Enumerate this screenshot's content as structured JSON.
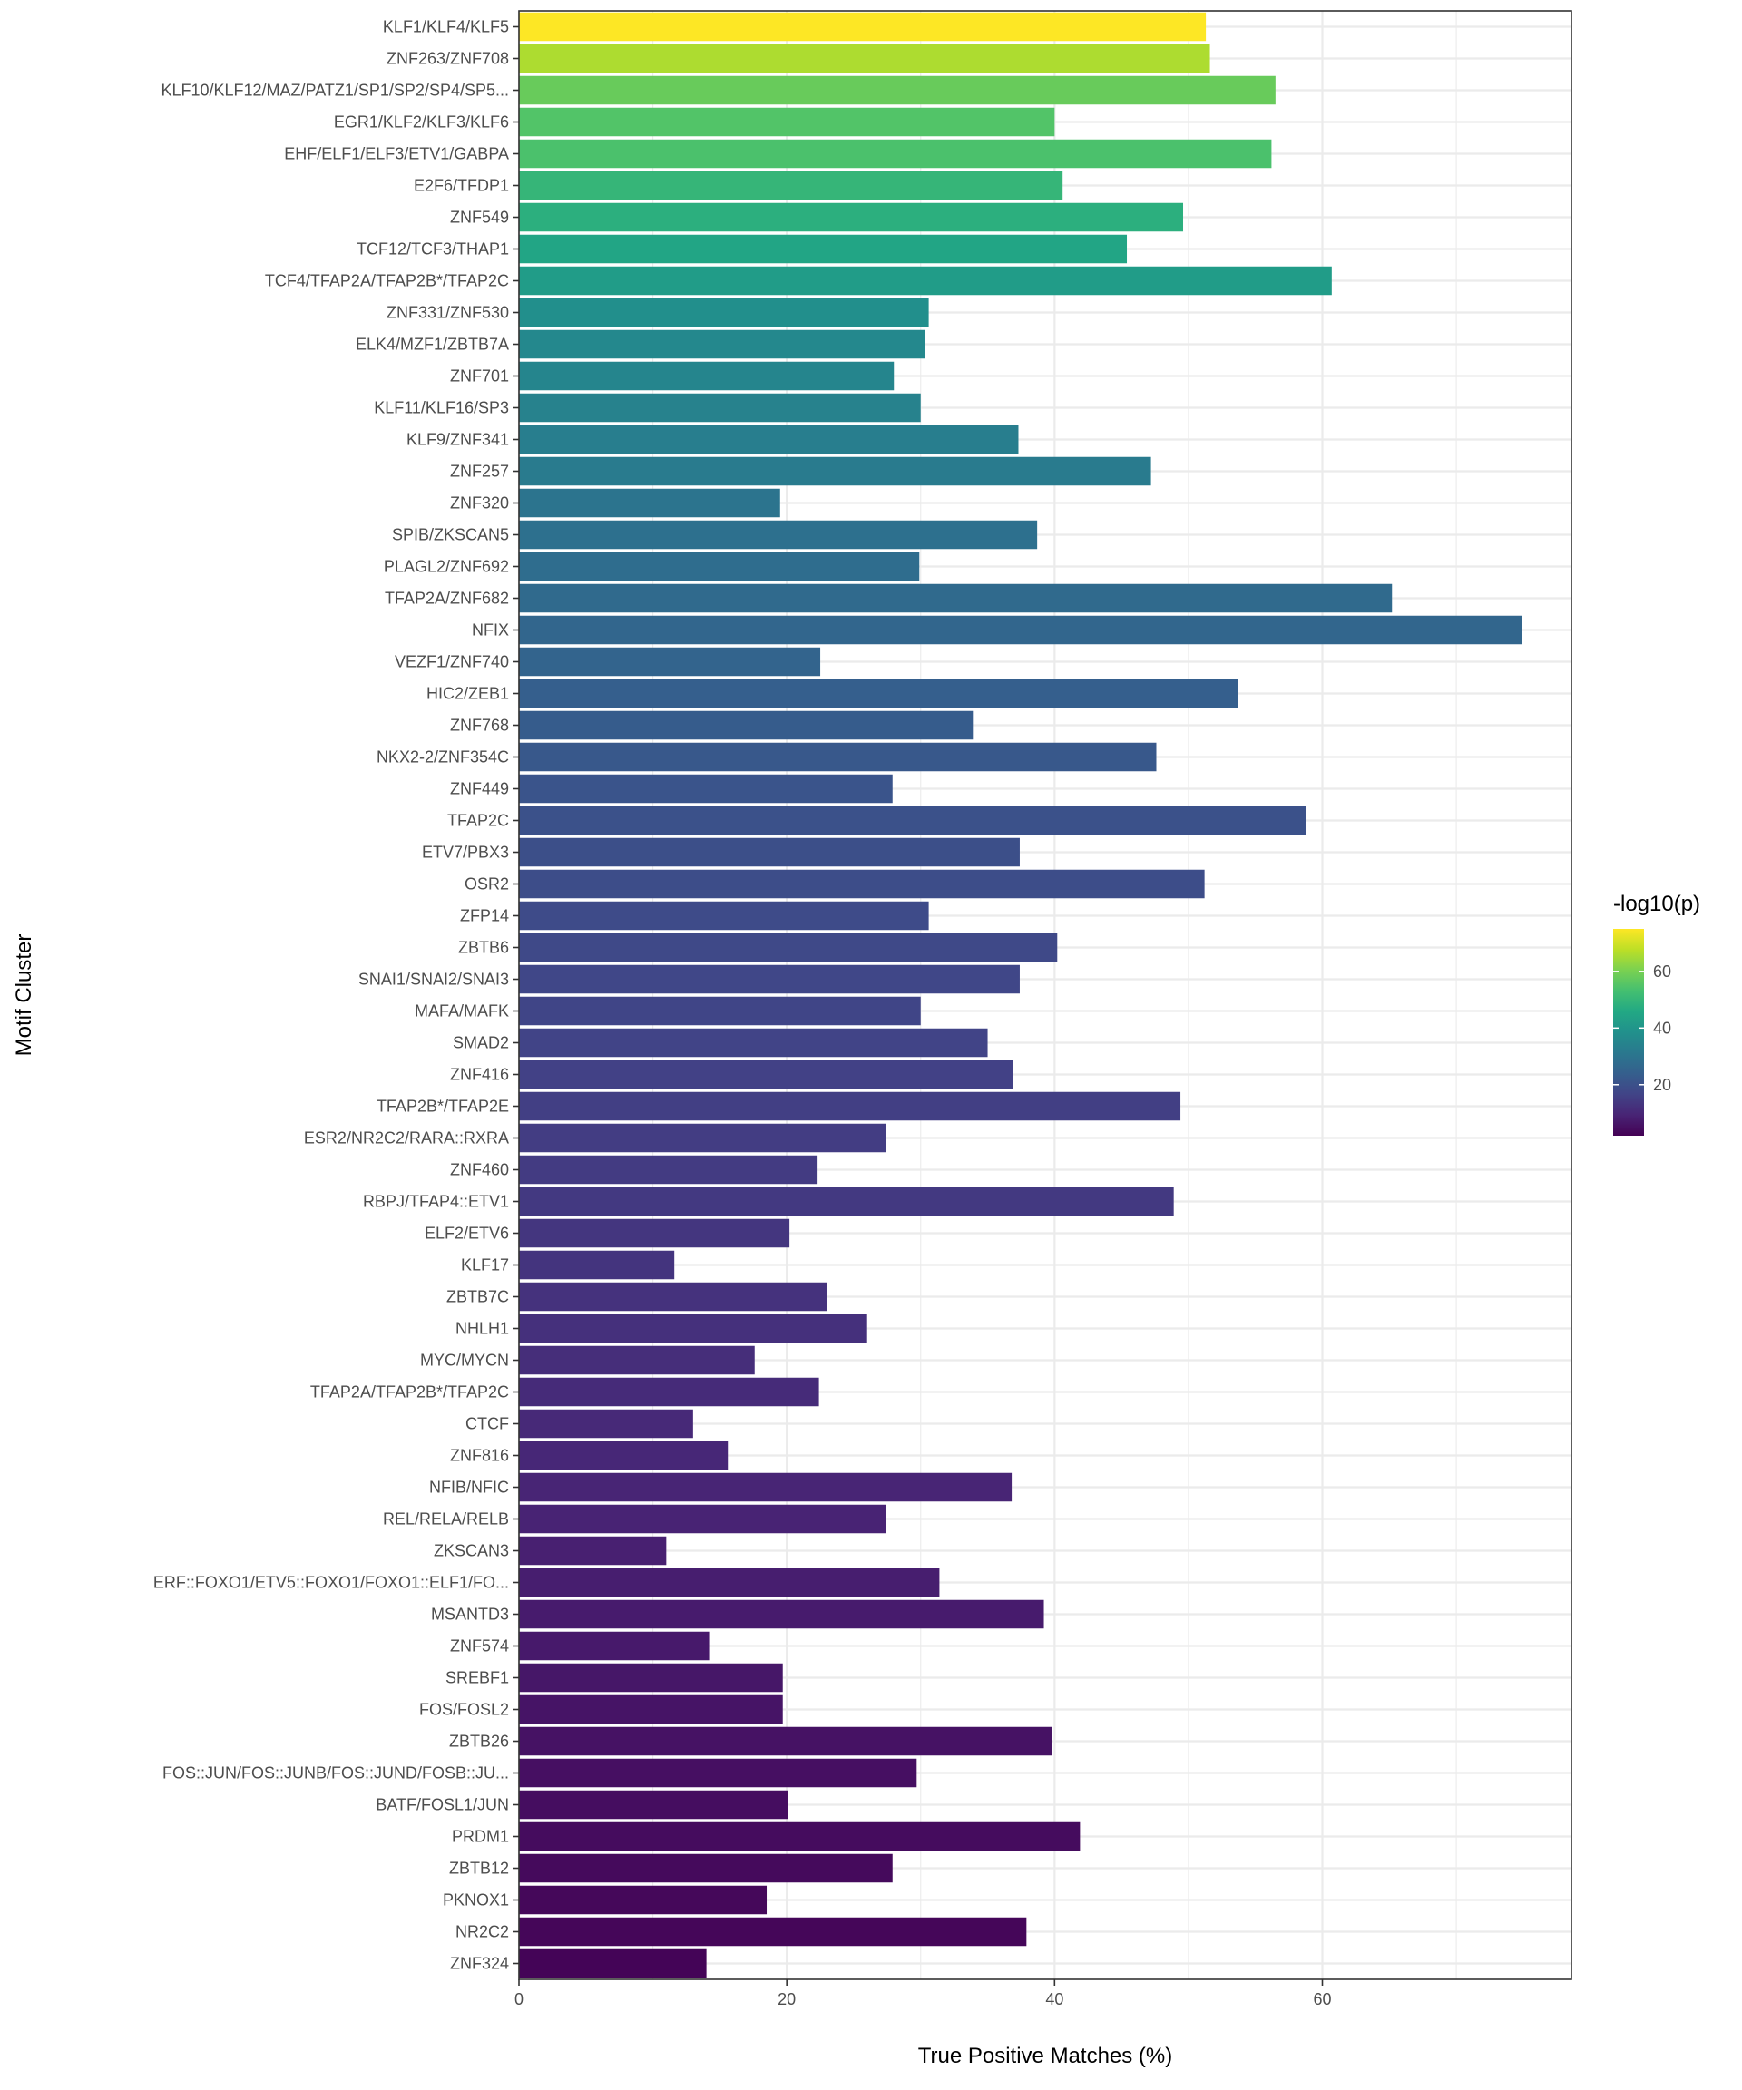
{
  "chart_data": {
    "type": "bar",
    "orientation": "horizontal",
    "xlabel": "True Positive Matches (%)",
    "ylabel": "Motif Cluster",
    "xlim": [
      0,
      78.6
    ],
    "xticks": [
      0,
      20,
      40,
      60
    ],
    "grid": true,
    "legend": {
      "title": "-log10(p)",
      "placement": "right",
      "ticks": [
        20,
        40,
        60
      ],
      "range": [
        2,
        75
      ],
      "colormap": "viridis"
    },
    "categories": [
      "KLF1/KLF4/KLF5",
      "ZNF263/ZNF708",
      "KLF10/KLF12/MAZ/PATZ1/SP1/SP2/SP4/SP5...",
      "EGR1/KLF2/KLF3/KLF6",
      "EHF/ELF1/ELF3/ETV1/GABPA",
      "E2F6/TFDP1",
      "ZNF549",
      "TCF12/TCF3/THAP1",
      "TCF4/TFAP2A/TFAP2B*/TFAP2C",
      "ZNF331/ZNF530",
      "ELK4/MZF1/ZBTB7A",
      "ZNF701",
      "KLF11/KLF16/SP3",
      "KLF9/ZNF341",
      "ZNF257",
      "ZNF320",
      "SPIB/ZKSCAN5",
      "PLAGL2/ZNF692",
      "TFAP2A/ZNF682",
      "NFIX",
      "VEZF1/ZNF740",
      "HIC2/ZEB1",
      "ZNF768",
      "NKX2-2/ZNF354C",
      "ZNF449",
      "TFAP2C",
      "ETV7/PBX3",
      "OSR2",
      "ZFP14",
      "ZBTB6",
      "SNAI1/SNAI2/SNAI3",
      "MAFA/MAFK",
      "SMAD2",
      "ZNF416",
      "TFAP2B*/TFAP2E",
      "ESR2/NR2C2/RARA::RXRA",
      "ZNF460",
      "RBPJ/TFAP4::ETV1",
      "ELF2/ETV6",
      "KLF17",
      "ZBTB7C",
      "NHLH1",
      "MYC/MYCN",
      "TFAP2A/TFAP2B*/TFAP2C",
      "CTCF",
      "ZNF816",
      "NFIB/NFIC",
      "REL/RELA/RELB",
      "ZKSCAN3",
      "ERF::FOXO1/ETV5::FOXO1/FOXO1::ELF1/FO...",
      "MSANTD3",
      "ZNF574",
      "SREBF1",
      "FOS/FOSL2",
      "ZBTB26",
      "FOS::JUN/FOS::JUNB/FOS::JUND/FOSB::JU...",
      "BATF/FOSL1/JUN",
      "PRDM1",
      "ZBTB12",
      "PKNOX1",
      "NR2C2",
      "ZNF324"
    ],
    "values": [
      51.3,
      51.6,
      56.5,
      40.0,
      56.2,
      40.6,
      49.6,
      45.4,
      60.7,
      30.6,
      30.3,
      28.0,
      30.0,
      37.3,
      47.2,
      19.5,
      38.7,
      29.9,
      65.2,
      74.9,
      22.5,
      53.7,
      33.9,
      47.6,
      27.9,
      58.8,
      37.4,
      51.2,
      30.6,
      40.2,
      37.4,
      30.0,
      35.0,
      36.9,
      49.4,
      27.4,
      22.3,
      48.9,
      20.2,
      11.6,
      23.0,
      26.0,
      17.6,
      22.4,
      13.0,
      15.6,
      36.8,
      27.4,
      11.0,
      31.4,
      39.2,
      14.2,
      19.7,
      19.7,
      39.8,
      29.7,
      20.1,
      41.9,
      27.9,
      18.5,
      37.9,
      14.0
    ],
    "color_values": [
      75,
      66,
      58,
      55,
      54,
      50,
      48,
      45,
      42,
      38,
      36,
      35,
      34,
      33,
      32,
      30,
      29,
      28,
      27,
      26,
      25.5,
      24,
      23,
      22,
      21,
      20,
      19.5,
      19,
      18.5,
      18,
      17.5,
      17,
      16.5,
      16,
      15.5,
      15,
      14.5,
      14,
      13.5,
      13,
      12.5,
      12,
      11.5,
      11,
      10.5,
      10,
      9.5,
      9,
      8.5,
      8,
      7.5,
      7,
      6.5,
      6,
      5.5,
      5,
      4.6,
      4.2,
      3.8,
      3.4,
      3.0,
      2.6
    ]
  }
}
